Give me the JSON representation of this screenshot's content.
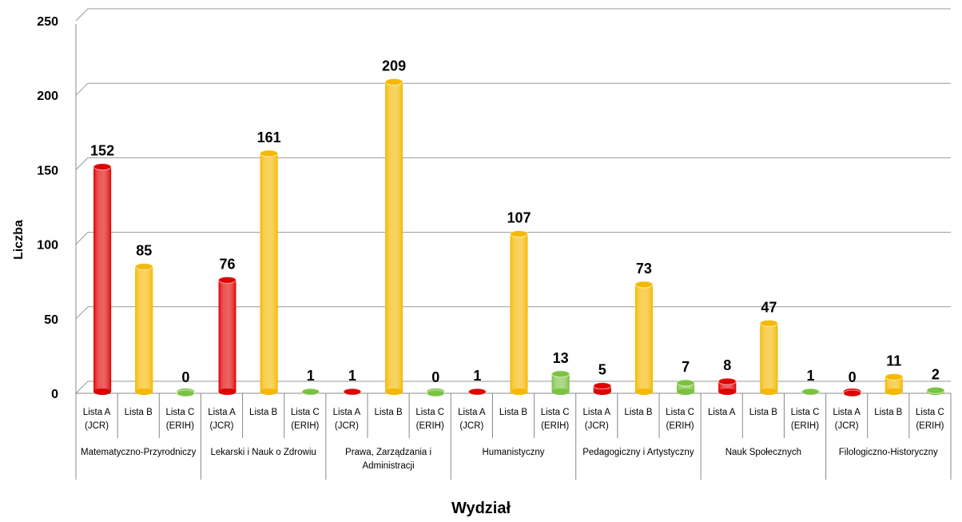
{
  "chart_data": {
    "type": "bar",
    "ylabel": "Liczba",
    "xlabel": "Wydział",
    "ylim": [
      0,
      250
    ],
    "yticks": [
      0,
      50,
      100,
      150,
      200,
      250
    ],
    "grid": true,
    "colors": [
      "#e00000",
      "#f5b800",
      "#7cc242"
    ],
    "groups": [
      {
        "name": "Matematyczno-Przyrodniczy",
        "categories": [
          "Lista A (JCR)",
          "Lista B",
          "Lista C (ERIH)"
        ],
        "values": [
          152,
          85,
          0
        ]
      },
      {
        "name": "Lekarski i Nauk o Zdrowiu",
        "categories": [
          "Lista A (JCR)",
          "Lista B",
          "Lista C (ERIH)"
        ],
        "values": [
          76,
          161,
          1
        ]
      },
      {
        "name": "Prawa, Zarządzania i Administracji",
        "categories": [
          "Lista A (JCR)",
          "Lista B",
          "Lista C (ERIH)"
        ],
        "values": [
          1,
          209,
          0
        ]
      },
      {
        "name": "Humanistyczny",
        "categories": [
          "Lista A (JCR)",
          "Lista B",
          "Lista C (ERIH)"
        ],
        "values": [
          1,
          107,
          13
        ]
      },
      {
        "name": "Pedagogiczny i Artystyczny",
        "categories": [
          "Lista A (JCR)",
          "Lista B",
          "Lista C (ERIH)"
        ],
        "values": [
          5,
          73,
          7
        ]
      },
      {
        "name": "Nauk Społecznych",
        "categories": [
          "Lista A",
          "Lista B",
          "Lista C (ERIH)"
        ],
        "values": [
          8,
          47,
          1
        ]
      },
      {
        "name": "Filologiczno-Historyczny",
        "categories": [
          "Lista A (JCR)",
          "Lista B",
          "Lista C (ERIH)"
        ],
        "values": [
          0,
          11,
          2
        ]
      }
    ]
  }
}
